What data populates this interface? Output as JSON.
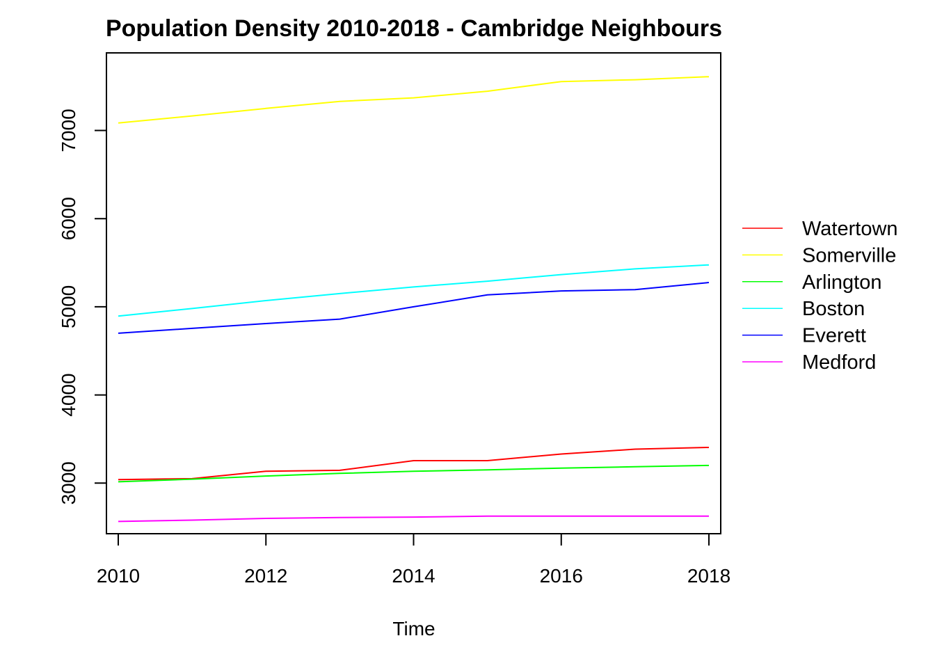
{
  "chart_data": {
    "type": "line",
    "title": "Population Density 2010-2018 - Cambridge Neighbours",
    "xlabel": "Time",
    "ylabel": "",
    "x": [
      2010,
      2011,
      2012,
      2013,
      2014,
      2015,
      2016,
      2017,
      2018
    ],
    "x_ticks": [
      "2010",
      "2012",
      "2014",
      "2016",
      "2018"
    ],
    "y_ticks": [
      "3000",
      "4000",
      "5000",
      "6000",
      "7000"
    ],
    "xlim": [
      2009.84,
      2018.16
    ],
    "ylim": [
      2426,
      7880
    ],
    "grid": false,
    "legend_position": "right",
    "series": [
      {
        "name": "Watertown",
        "color": "#FF0000",
        "values": [
          3040,
          3050,
          3135,
          3145,
          3255,
          3255,
          3330,
          3385,
          3405
        ]
      },
      {
        "name": "Somerville",
        "color": "#FFFF00",
        "values": [
          7085,
          7165,
          7250,
          7330,
          7370,
          7445,
          7555,
          7575,
          7610
        ]
      },
      {
        "name": "Arlington",
        "color": "#00FF00",
        "values": [
          3015,
          3045,
          3080,
          3110,
          3135,
          3150,
          3170,
          3185,
          3200
        ]
      },
      {
        "name": "Boston",
        "color": "#00FFFF",
        "values": [
          4895,
          4980,
          5070,
          5150,
          5225,
          5290,
          5365,
          5430,
          5475
        ]
      },
      {
        "name": "Everett",
        "color": "#0000FF",
        "values": [
          4700,
          4755,
          4810,
          4860,
          5000,
          5135,
          5180,
          5195,
          5275
        ]
      },
      {
        "name": "Medford",
        "color": "#FF00FF",
        "values": [
          2565,
          2580,
          2600,
          2610,
          2615,
          2625,
          2625,
          2625,
          2625
        ]
      }
    ]
  }
}
